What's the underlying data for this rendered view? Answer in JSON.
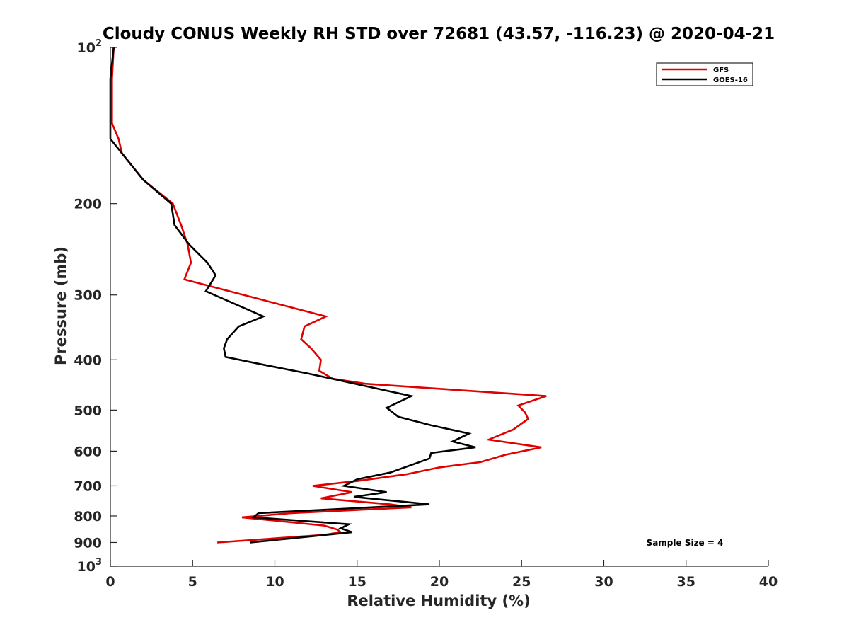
{
  "chart_data": {
    "type": "line",
    "title": "Cloudy CONUS Weekly RH STD over 72681 (43.57, -116.23) @ 2020-04-21",
    "xlabel": "Relative Humidity (%)",
    "ylabel": "Pressure (mb)",
    "xlim": [
      0,
      40
    ],
    "ylim": [
      100,
      1000
    ],
    "y_scale": "log",
    "y_reversed": true,
    "x_ticks": [
      "0",
      "5",
      "10",
      "15",
      "20",
      "25",
      "30",
      "35",
      "40"
    ],
    "y_ticks": [
      {
        "value": 100,
        "base": "10",
        "exp": "2"
      },
      {
        "value": 200,
        "label": "200"
      },
      {
        "value": 300,
        "label": "300"
      },
      {
        "value": 400,
        "label": "400"
      },
      {
        "value": 500,
        "label": "500"
      },
      {
        "value": 600,
        "label": "600"
      },
      {
        "value": 700,
        "label": "700"
      },
      {
        "value": 800,
        "label": "800"
      },
      {
        "value": 900,
        "label": "900"
      },
      {
        "value": 1000,
        "base": "10",
        "exp": "3"
      }
    ],
    "grid": false,
    "legend_position": "top-right",
    "annotation": "Sample Size = 4",
    "series": [
      {
        "name": "GFS",
        "color": "#e00000",
        "points": [
          [
            0.2,
            100
          ],
          [
            0.1,
            115
          ],
          [
            0.1,
            125
          ],
          [
            0.1,
            140
          ],
          [
            0.5,
            150
          ],
          [
            0.7,
            160
          ],
          [
            2,
            180
          ],
          [
            3.8,
            200
          ],
          [
            4.3,
            220
          ],
          [
            4.7,
            240
          ],
          [
            4.9,
            260
          ],
          [
            4.5,
            280
          ],
          [
            13.1,
            330
          ],
          [
            11.8,
            345
          ],
          [
            11.6,
            365
          ],
          [
            12.2,
            380
          ],
          [
            12.8,
            400
          ],
          [
            12.7,
            420
          ],
          [
            13.5,
            435
          ],
          [
            15.5,
            445
          ],
          [
            26.5,
            470
          ],
          [
            24.8,
            490
          ],
          [
            25.2,
            505
          ],
          [
            25.4,
            520
          ],
          [
            24.5,
            545
          ],
          [
            23.0,
            570
          ],
          [
            26.2,
            590
          ],
          [
            24.0,
            610
          ],
          [
            22.5,
            630
          ],
          [
            20.0,
            645
          ],
          [
            18.0,
            665
          ],
          [
            15.0,
            685
          ],
          [
            12.3,
            700
          ],
          [
            14.7,
            720
          ],
          [
            12.8,
            740
          ],
          [
            17.0,
            760
          ],
          [
            18.3,
            770
          ],
          [
            11.0,
            790
          ],
          [
            8.0,
            805
          ],
          [
            13.0,
            835
          ],
          [
            13.8,
            850
          ],
          [
            14.0,
            860
          ],
          [
            13.0,
            870
          ],
          [
            6.5,
            900
          ]
        ]
      },
      {
        "name": "GOES-16",
        "color": "#000000",
        "points": [
          [
            0.2,
            100
          ],
          [
            0.0,
            115
          ],
          [
            0.0,
            130
          ],
          [
            0.0,
            150
          ],
          [
            0.7,
            160
          ],
          [
            2.0,
            180
          ],
          [
            3.7,
            200
          ],
          [
            3.9,
            220
          ],
          [
            4.8,
            240
          ],
          [
            5.9,
            260
          ],
          [
            6.4,
            275
          ],
          [
            5.8,
            295
          ],
          [
            9.3,
            330
          ],
          [
            7.8,
            345
          ],
          [
            7.1,
            365
          ],
          [
            6.9,
            380
          ],
          [
            7.0,
            395
          ],
          [
            9.5,
            410
          ],
          [
            12.0,
            425
          ],
          [
            18.3,
            470
          ],
          [
            16.8,
            495
          ],
          [
            17.5,
            515
          ],
          [
            19.5,
            535
          ],
          [
            21.8,
            555
          ],
          [
            20.8,
            575
          ],
          [
            22.2,
            590
          ],
          [
            19.5,
            605
          ],
          [
            19.4,
            620
          ],
          [
            17.0,
            660
          ],
          [
            15.0,
            680
          ],
          [
            14.2,
            700
          ],
          [
            16.8,
            720
          ],
          [
            14.8,
            735
          ],
          [
            19.4,
            760
          ],
          [
            9.0,
            790
          ],
          [
            8.7,
            805
          ],
          [
            14.5,
            830
          ],
          [
            14.0,
            845
          ],
          [
            14.7,
            860
          ],
          [
            8.5,
            900
          ]
        ]
      }
    ]
  }
}
